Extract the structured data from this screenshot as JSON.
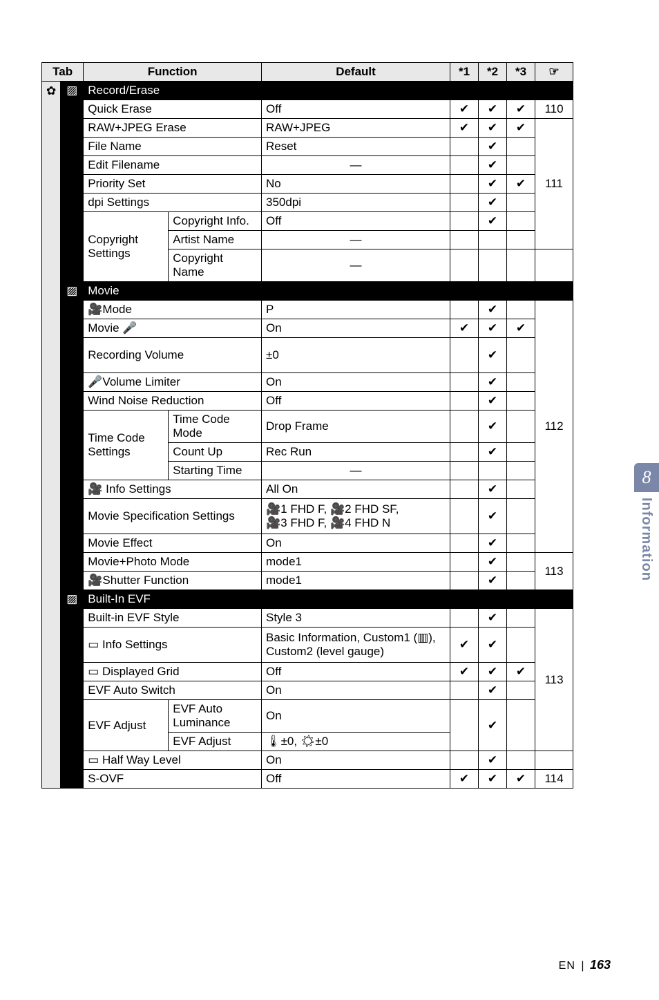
{
  "header": {
    "cols": [
      "Tab",
      "Function",
      "Default",
      "*1",
      "*2",
      "*3",
      "☞"
    ]
  },
  "sideTab": {
    "num": "8",
    "label": "Information"
  },
  "footer": {
    "en": "EN",
    "page": "163"
  },
  "tabSymbol": "✿",
  "check": "✔",
  "dash": "—",
  "sections": [
    {
      "icon": "▨",
      "title": "Record/Erase",
      "rows": [
        {
          "f": "Quick Erase",
          "d": "Off",
          "c": [
            1,
            1,
            1
          ],
          "pg": "110"
        },
        {
          "f": "RAW+JPEG Erase",
          "d": "RAW+JPEG",
          "c": [
            1,
            1,
            1
          ],
          "pg": "111",
          "pgSpan": 7
        },
        {
          "f": "File Name",
          "d": "Reset",
          "c": [
            0,
            1,
            0
          ]
        },
        {
          "f": "Edit Filename",
          "d": "—",
          "c": [
            0,
            1,
            0
          ]
        },
        {
          "f": "Priority Set",
          "d": "No",
          "c": [
            0,
            1,
            1
          ]
        },
        {
          "f": "dpi Settings",
          "d": "350dpi",
          "c": [
            0,
            1,
            0
          ]
        },
        {
          "group": "Copyright Settings",
          "groupSpan": 3,
          "sub": "Copyright Info.",
          "d": "Off",
          "c": [
            0,
            1,
            0
          ]
        },
        {
          "sub": "Artist Name",
          "d": "—",
          "c": [
            0,
            0,
            0
          ]
        },
        {
          "sub": "Copyright Name",
          "d": "—",
          "c": [
            0,
            0,
            0
          ]
        }
      ]
    },
    {
      "icon": "▨",
      "title": "Movie",
      "rows": [
        {
          "f": "🎥Mode",
          "d": "P",
          "c": [
            0,
            1,
            0
          ],
          "pg": "112",
          "pgSpan": 11
        },
        {
          "f": "Movie 🎤",
          "d": "On",
          "c": [
            1,
            1,
            1
          ]
        },
        {
          "f": "Recording Volume",
          "d": "±0",
          "c": [
            0,
            1,
            0
          ],
          "tall": true
        },
        {
          "f": "🎤Volume Limiter",
          "d": "On",
          "c": [
            0,
            1,
            0
          ]
        },
        {
          "f": "Wind Noise Reduction",
          "d": "Off",
          "c": [
            0,
            1,
            0
          ]
        },
        {
          "group": "Time Code Settings",
          "groupSpan": 3,
          "sub": "Time Code Mode",
          "d": "Drop Frame",
          "c": [
            0,
            1,
            0
          ]
        },
        {
          "sub": "Count Up",
          "d": "Rec Run",
          "c": [
            0,
            1,
            0
          ]
        },
        {
          "sub": "Starting Time",
          "d": "—",
          "c": [
            0,
            0,
            0
          ]
        },
        {
          "f": "🎥 Info Settings",
          "d": "All On",
          "c": [
            0,
            1,
            0
          ]
        },
        {
          "f": "Movie Specification Settings",
          "d": "🎥1 FHD F, 🎥2 FHD SF,\n🎥3 FHD F, 🎥4 FHD N",
          "c": [
            0,
            1,
            0
          ],
          "tall": true
        },
        {
          "f": "Movie Effect",
          "d": "On",
          "c": [
            0,
            1,
            0
          ]
        },
        {
          "f": "Movie+Photo Mode",
          "d": "mode1",
          "c": [
            0,
            1,
            0
          ],
          "pg": "113",
          "pgSpan": 2
        },
        {
          "f": "🎥Shutter Function",
          "d": "mode1",
          "c": [
            0,
            1,
            0
          ]
        }
      ]
    },
    {
      "icon": "▨",
      "title": "Built-In EVF",
      "rows": [
        {
          "f": "Built-in EVF Style",
          "d": "Style 3",
          "c": [
            0,
            1,
            0
          ],
          "pg": "113",
          "pgSpan": 6
        },
        {
          "f": "▭ Info Settings",
          "d": "Basic Information, Custom1 (▥), Custom2 (level gauge)",
          "c": [
            1,
            1,
            0
          ],
          "tall": true
        },
        {
          "f": "▭ Displayed Grid",
          "d": "Off",
          "c": [
            1,
            1,
            1
          ]
        },
        {
          "f": "EVF Auto Switch",
          "d": "On",
          "c": [
            0,
            1,
            0
          ]
        },
        {
          "group": "EVF Adjust",
          "groupSpan": 2,
          "sub": "EVF Auto Luminance",
          "d": "On",
          "c": [
            0,
            1,
            0
          ],
          "cSpan": 2
        },
        {
          "sub": "EVF Adjust",
          "d": "🌡±0, ☀±0"
        },
        {
          "f": "▭ Half Way Level",
          "d": "On",
          "c": [
            0,
            1,
            0
          ]
        },
        {
          "f": "S-OVF",
          "d": "Off",
          "c": [
            1,
            1,
            1
          ],
          "pg": "114"
        }
      ]
    }
  ]
}
